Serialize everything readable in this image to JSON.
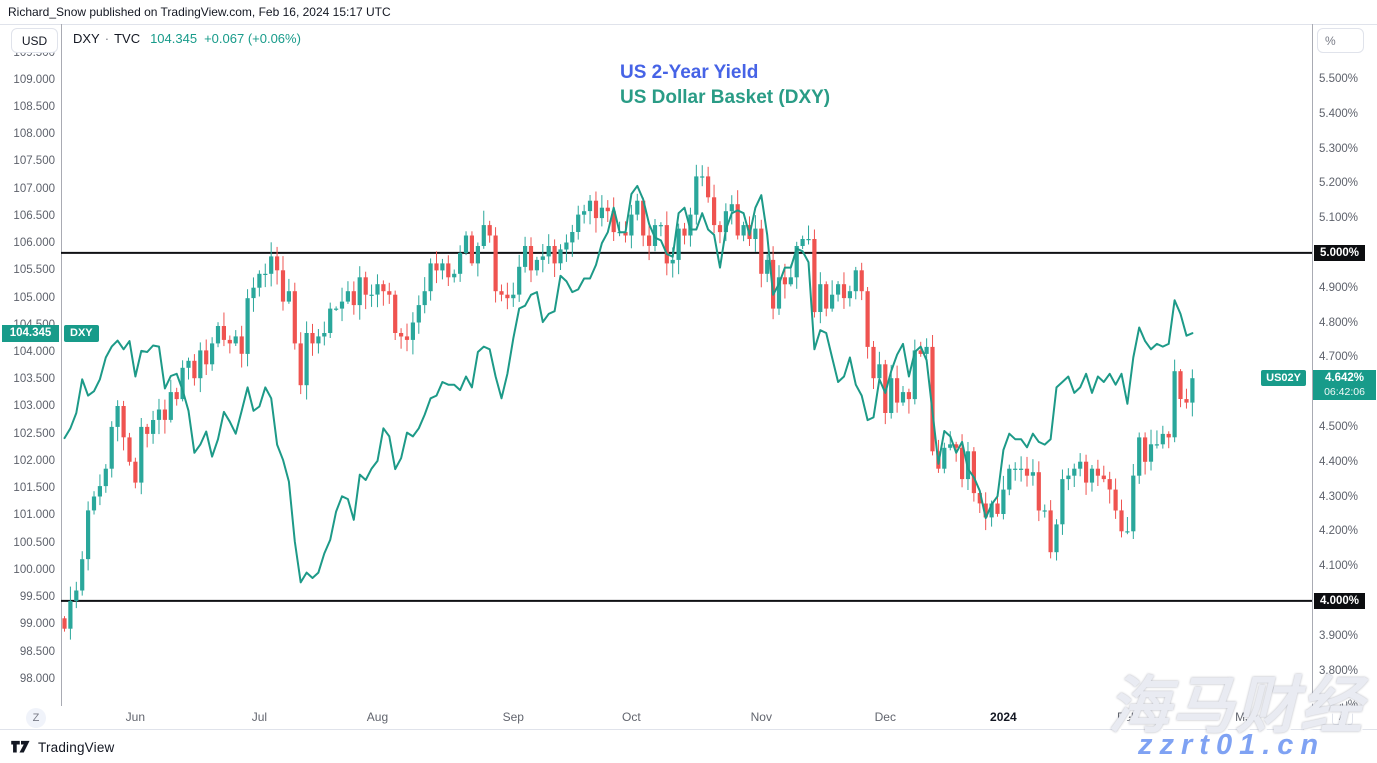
{
  "attribution": "Richard_Snow published on TradingView.com, Feb 16, 2024 15:17 UTC",
  "legend": {
    "symbol": "DXY",
    "separator": "·",
    "exchange": "TVC",
    "last": "104.345",
    "change": "+0.067 (+0.06%)"
  },
  "titles": {
    "line1": "US 2-Year Yield",
    "line2": "US Dollar Basket (DXY)"
  },
  "colors": {
    "up": "#2aa79b",
    "down": "#ef5350",
    "dxy_line": "#1d9a88",
    "badge_teal": "#189b8a",
    "level_badge_bg": "#0c0d10",
    "title_blue": "#4663e6",
    "title_teal": "#2a9c86",
    "legend_value": "#189b8a",
    "level_line": "#101114",
    "border_strong": "#a9abb3",
    "border_light": "#e0e3eb"
  },
  "left_axis": {
    "unit_button": "USD",
    "ticks": [
      109.5,
      109.0,
      108.5,
      108.0,
      107.5,
      107.0,
      106.5,
      106.0,
      105.5,
      105.0,
      104.5,
      104.0,
      103.5,
      103.0,
      102.5,
      102.0,
      101.5,
      101.0,
      100.5,
      100.0,
      99.5,
      99.0,
      98.5,
      98.0
    ],
    "price_label": {
      "value": "104.345",
      "y_value": 104.345,
      "tag": "DXY"
    }
  },
  "right_axis": {
    "unit_button": "%",
    "ticks": [
      5.5,
      5.4,
      5.3,
      5.2,
      5.1,
      5.0,
      4.9,
      4.8,
      4.7,
      4.6,
      4.5,
      4.4,
      4.3,
      4.2,
      4.1,
      4.0,
      3.9,
      3.8,
      3.7
    ],
    "levels": [
      {
        "label": "5.000%",
        "value": 5.0
      },
      {
        "label": "4.000%",
        "value": 4.0
      }
    ],
    "price_label": {
      "tag": "US02Y",
      "value": "4.642%",
      "y_value": 4.642,
      "countdown": "06:42:06"
    }
  },
  "time_axis": {
    "labels": [
      {
        "label": "Jun",
        "i": 12
      },
      {
        "label": "Jul",
        "i": 33
      },
      {
        "label": "Aug",
        "i": 53
      },
      {
        "label": "Sep",
        "i": 76
      },
      {
        "label": "Oct",
        "i": 96
      },
      {
        "label": "Nov",
        "i": 118
      },
      {
        "label": "Dec",
        "i": 139
      },
      {
        "label": "2024",
        "i": 159,
        "strong": true
      },
      {
        "label": "Feb",
        "i": 180
      },
      {
        "label": "Mar",
        "i": 200
      }
    ],
    "z_button": "Z",
    "a_button": "A"
  },
  "footer": {
    "brand": "TradingView"
  },
  "watermarks": {
    "cjk": "海马财经",
    "url": "zzrt01.cn"
  },
  "chart_data": {
    "type": "mixed",
    "x_start": "2023-05-15",
    "x_end": "2024-02-16",
    "frequency": "trading-days",
    "axes": {
      "left": {
        "min": 97.5,
        "max": 110.005
      },
      "right": {
        "min": 3.698,
        "max": 5.655
      }
    },
    "horizontal_lines": [
      {
        "value": 5.0,
        "axis": "right"
      },
      {
        "value": 4.0,
        "axis": "right"
      }
    ],
    "series": [
      {
        "name": "US02Y",
        "type": "candlestick",
        "axis": "right",
        "unit": "%",
        "first_open": 3.95,
        "closes": [
          3.92,
          4.0,
          4.03,
          4.12,
          4.26,
          4.3,
          4.33,
          4.38,
          4.5,
          4.56,
          4.47,
          4.4,
          4.34,
          4.5,
          4.48,
          4.52,
          4.55,
          4.52,
          4.6,
          4.58,
          4.67,
          4.69,
          4.64,
          4.72,
          4.68,
          4.74,
          4.79,
          4.75,
          4.74,
          4.76,
          4.71,
          4.87,
          4.9,
          4.94,
          4.94,
          4.99,
          4.95,
          4.86,
          4.89,
          4.74,
          4.62,
          4.77,
          4.74,
          4.76,
          4.77,
          4.84,
          4.84,
          4.86,
          4.89,
          4.85,
          4.93,
          4.88,
          4.88,
          4.91,
          4.89,
          4.88,
          4.77,
          4.76,
          4.75,
          4.8,
          4.85,
          4.89,
          4.97,
          4.95,
          4.97,
          4.93,
          4.94,
          5.0,
          5.05,
          4.97,
          5.02,
          5.08,
          5.05,
          4.89,
          4.88,
          4.87,
          4.88,
          4.96,
          5.02,
          4.95,
          4.98,
          4.99,
          5.02,
          4.97,
          5.01,
          5.03,
          5.06,
          5.11,
          5.12,
          5.15,
          5.1,
          5.13,
          5.12,
          5.06,
          5.06,
          5.05,
          5.11,
          5.15,
          5.05,
          5.02,
          5.08,
          5.08,
          4.97,
          4.98,
          5.07,
          5.05,
          5.11,
          5.22,
          5.22,
          5.16,
          5.08,
          5.06,
          5.12,
          5.14,
          5.05,
          5.08,
          5.04,
          5.07,
          4.94,
          4.98,
          4.84,
          4.93,
          4.91,
          4.93,
          5.02,
          5.04,
          5.04,
          4.83,
          4.91,
          4.84,
          4.88,
          4.91,
          4.87,
          4.89,
          4.95,
          4.89,
          4.73,
          4.64,
          4.68,
          4.54,
          4.64,
          4.57,
          4.6,
          4.58,
          4.72,
          4.71,
          4.73,
          4.43,
          4.38,
          4.44,
          4.45,
          4.44,
          4.35,
          4.43,
          4.31,
          4.28,
          4.24,
          4.28,
          4.25,
          4.32,
          4.38,
          4.38,
          4.38,
          4.36,
          4.37,
          4.26,
          4.26,
          4.14,
          4.22,
          4.35,
          4.36,
          4.38,
          4.4,
          4.34,
          4.38,
          4.36,
          4.35,
          4.32,
          4.26,
          4.2,
          4.2,
          4.36,
          4.47,
          4.4,
          4.45,
          4.45,
          4.48,
          4.47,
          4.66,
          4.58,
          4.57,
          4.64
        ]
      },
      {
        "name": "DXY",
        "type": "line",
        "axis": "left",
        "unit": "USD",
        "closes": [
          102.42,
          102.6,
          102.88,
          103.5,
          103.2,
          103.28,
          103.5,
          103.9,
          104.1,
          104.21,
          104.05,
          104.2,
          103.55,
          104.02,
          104.0,
          104.12,
          104.1,
          103.33,
          103.56,
          103.6,
          103.3,
          102.92,
          102.15,
          102.3,
          102.54,
          102.08,
          102.4,
          102.9,
          102.72,
          102.5,
          102.92,
          103.35,
          102.92,
          103.0,
          103.35,
          103.15,
          102.3,
          102.02,
          101.62,
          100.52,
          99.77,
          99.95,
          99.85,
          99.95,
          100.3,
          100.55,
          101.07,
          101.35,
          101.3,
          100.92,
          101.75,
          101.65,
          101.86,
          102.0,
          102.6,
          102.45,
          101.85,
          102.05,
          102.52,
          102.45,
          102.6,
          102.85,
          103.15,
          103.2,
          103.45,
          103.4,
          103.4,
          103.3,
          103.55,
          103.35,
          104.0,
          104.1,
          104.05,
          103.55,
          103.15,
          103.6,
          104.25,
          104.8,
          104.85,
          105.05,
          105.1,
          104.55,
          104.7,
          104.75,
          105.4,
          105.3,
          105.1,
          105.15,
          105.35,
          105.35,
          105.6,
          106.0,
          106.2,
          106.65,
          106.2,
          106.2,
          106.9,
          107.05,
          106.8,
          106.35,
          106.1,
          106.05,
          105.8,
          105.75,
          106.55,
          106.65,
          106.25,
          106.25,
          106.55,
          106.25,
          106.15,
          105.55,
          106.25,
          106.55,
          106.6,
          106.55,
          106.15,
          106.65,
          106.88,
          106.15,
          105.05,
          105.25,
          105.55,
          105.55,
          105.9,
          105.85,
          105.65,
          104.05,
          104.4,
          104.35,
          103.9,
          103.45,
          103.55,
          103.9,
          103.4,
          103.2,
          102.75,
          102.8,
          103.5,
          103.25,
          103.65,
          103.95,
          104.15,
          103.55,
          104.0,
          104.1,
          103.85,
          102.9,
          101.95,
          102.55,
          102.45,
          102.15,
          102.35,
          101.85,
          101.7,
          101.45,
          100.95,
          101.2,
          101.35,
          102.2,
          102.5,
          102.4,
          102.4,
          102.25,
          102.5,
          102.35,
          102.3,
          102.4,
          103.35,
          103.45,
          103.55,
          103.25,
          103.35,
          103.6,
          103.25,
          103.55,
          103.45,
          103.6,
          103.4,
          103.6,
          103.05,
          103.9,
          104.45,
          104.2,
          104.05,
          104.15,
          104.1,
          104.15,
          104.95,
          104.7,
          104.3,
          104.345
        ]
      }
    ]
  }
}
